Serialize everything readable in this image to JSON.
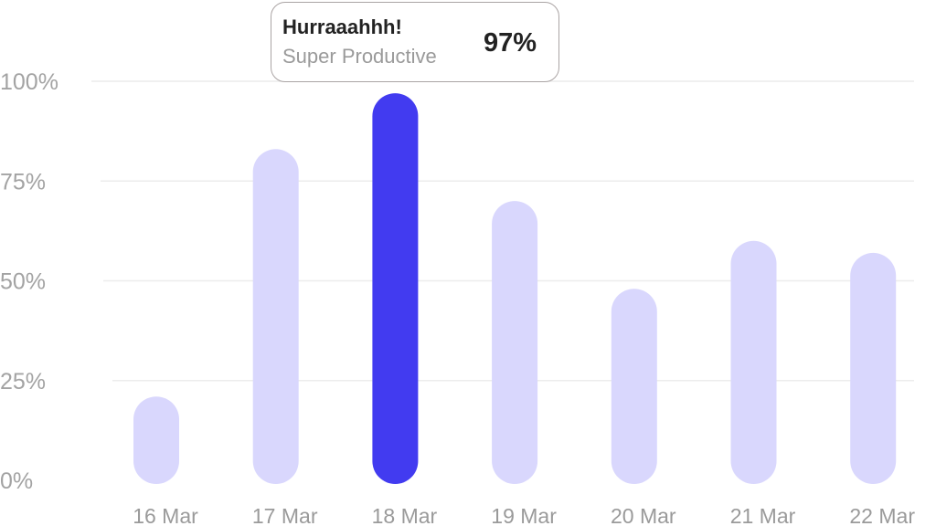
{
  "chart_data": {
    "type": "bar",
    "categories": [
      "16 Mar",
      "17 Mar",
      "18 Mar",
      "19 Mar",
      "20 Mar",
      "21 Mar",
      "22 Mar"
    ],
    "values": [
      21,
      83,
      97,
      70,
      48,
      60,
      57
    ],
    "ylim": [
      0,
      100
    ],
    "yticks": [
      "0%",
      "25%",
      "50%",
      "75%",
      "100%"
    ],
    "grid": true,
    "highlighted_category": "18 Mar",
    "colors": {
      "bar": "#d9d7fd",
      "highlight": "#423bf0",
      "grid": "#ececec"
    },
    "tooltip": {
      "title": "Hurraaahhh!",
      "subtitle": "Super Productive",
      "value": "97%"
    }
  }
}
